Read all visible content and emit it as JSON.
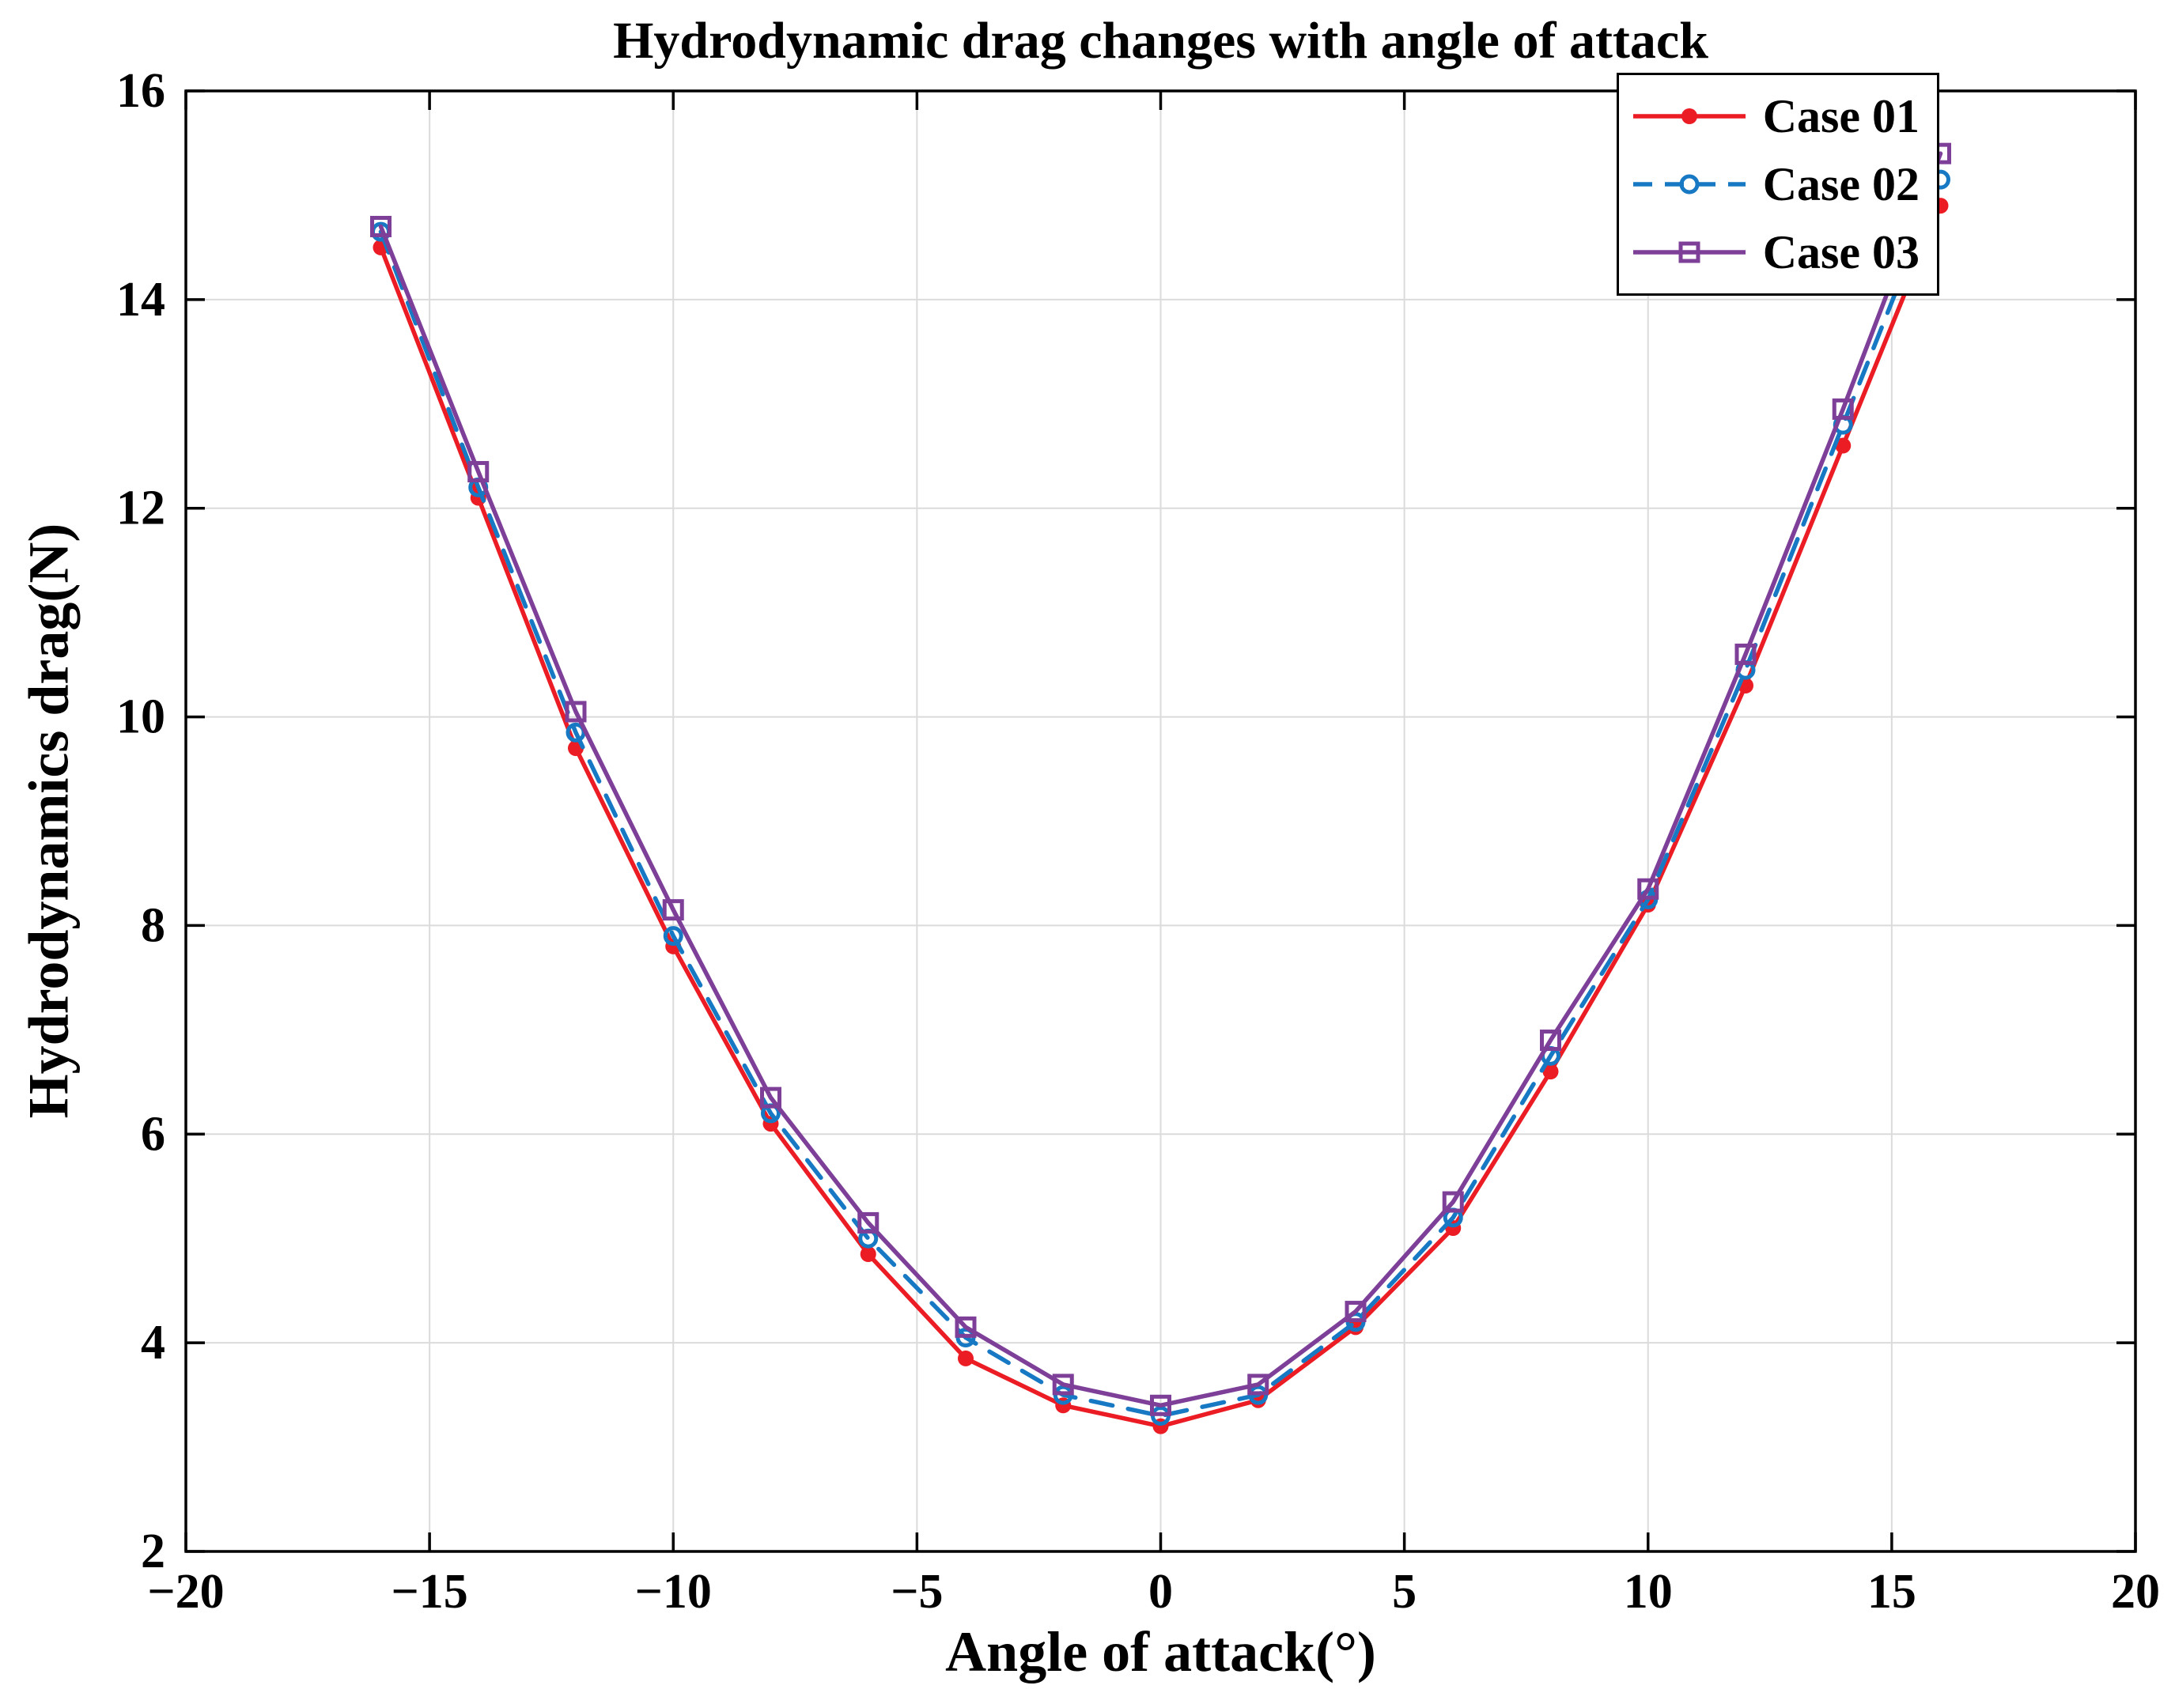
{
  "chart_data": {
    "type": "line",
    "title": "Hydrodynamic drag changes with angle of attack",
    "xlabel": "Angle of attack(°)",
    "ylabel": "Hydrodynamics drag(N)",
    "xlim": [
      -20,
      20
    ],
    "ylim": [
      2,
      16
    ],
    "xticks": [
      -20,
      -15,
      -10,
      -5,
      0,
      5,
      10,
      15,
      20
    ],
    "yticks": [
      2,
      4,
      6,
      8,
      10,
      12,
      14,
      16
    ],
    "grid": true,
    "legend_position": "top-right",
    "x": [
      -16,
      -14,
      -12,
      -10,
      -8,
      -6,
      -4,
      -2,
      0,
      2,
      4,
      6,
      8,
      10,
      12,
      14,
      16
    ],
    "series": [
      {
        "name": "Case 01",
        "color": "#ec1c24",
        "line_style": "solid",
        "marker": "filled-circle",
        "values": [
          14.5,
          12.1,
          9.7,
          7.8,
          6.1,
          4.85,
          3.85,
          3.4,
          3.2,
          3.45,
          4.15,
          5.1,
          6.6,
          8.2,
          10.3,
          12.6,
          14.9
        ]
      },
      {
        "name": "Case 02",
        "color": "#1779c4",
        "line_style": "dashed",
        "marker": "open-circle",
        "values": [
          14.65,
          12.2,
          9.85,
          7.9,
          6.2,
          5.0,
          4.05,
          3.5,
          3.3,
          3.5,
          4.2,
          5.2,
          6.75,
          8.25,
          10.45,
          12.8,
          15.15
        ]
      },
      {
        "name": "Case 03",
        "color": "#7d3f98",
        "line_style": "solid",
        "marker": "open-square",
        "values": [
          14.7,
          12.35,
          10.05,
          8.15,
          6.35,
          5.15,
          4.15,
          3.6,
          3.4,
          3.6,
          4.3,
          5.35,
          6.9,
          8.35,
          10.6,
          12.95,
          15.4
        ]
      }
    ]
  }
}
